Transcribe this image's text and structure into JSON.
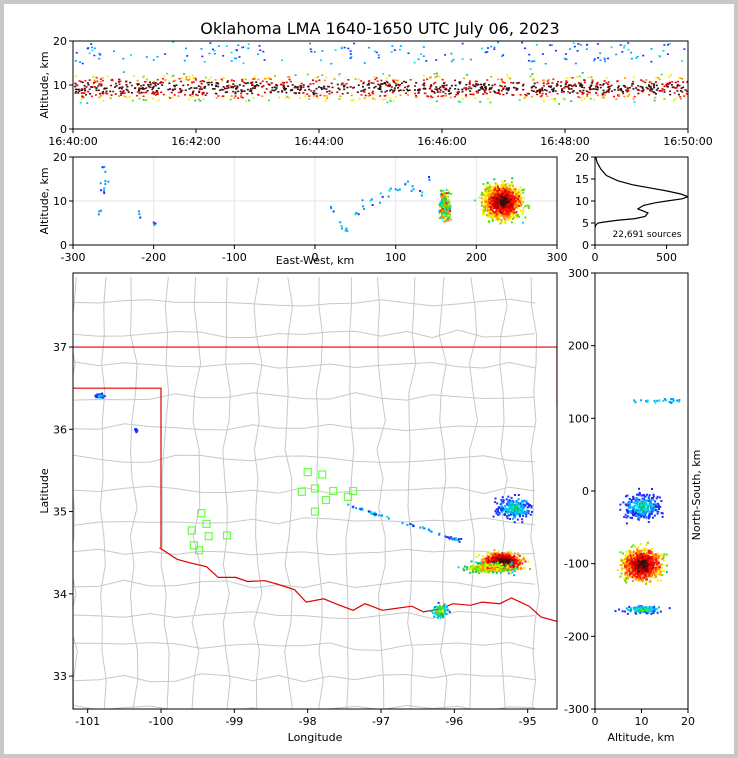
{
  "title": "Oklahoma LMA 1640-1650 UTC July 06, 2023",
  "colors": {
    "border_state": "#e00000",
    "county": "#c8c8c8",
    "station": "#66ff44",
    "frame": "#000000"
  },
  "chart_data": [
    {
      "id": "time-height",
      "type": "heatmap",
      "xticks": [
        "16:40:00",
        "16:42:00",
        "16:44:00",
        "16:46:00",
        "16:48:00",
        "16:50:00"
      ],
      "yticks": [
        "0",
        "10",
        "20"
      ],
      "ylabel": "Altitude, km",
      "xlabel": "",
      "xlim": [
        "16:40:00",
        "16:50:00"
      ],
      "ylim": [
        0,
        20
      ]
    },
    {
      "id": "ew-altitude",
      "type": "heatmap",
      "xticks": [
        "-300",
        "-200",
        "-100",
        "0",
        "100",
        "200",
        "300"
      ],
      "yticks": [
        "0",
        "10",
        "20"
      ],
      "xlabel": "East-West, km",
      "ylabel": "Altitude, km",
      "xlim": [
        -300,
        300
      ],
      "ylim": [
        0,
        20
      ],
      "grid": true
    },
    {
      "id": "altitude-histogram",
      "type": "line",
      "xticks": [
        "0",
        "500"
      ],
      "yticks": [
        "0",
        "5",
        "10",
        "15",
        "20"
      ],
      "annotation": "22,691 sources",
      "xlim": [
        0,
        650
      ],
      "ylim": [
        0,
        20
      ],
      "series": [
        {
          "x": [
            0,
            5,
            20,
            60,
            150,
            280,
            350,
            370,
            300,
            340,
            420,
            520,
            610,
            650,
            600,
            500,
            380,
            260,
            160,
            80,
            40,
            15,
            5
          ],
          "y": [
            4,
            4.5,
            5,
            5.2,
            5.6,
            6,
            6.5,
            7.3,
            8.2,
            9,
            9.6,
            10.1,
            10.5,
            11,
            11.6,
            12.3,
            13,
            13.7,
            14.6,
            15.8,
            17.3,
            18.8,
            20
          ]
        }
      ]
    },
    {
      "id": "plan-view",
      "type": "scatter",
      "xticks": [
        "-101",
        "-100",
        "-99",
        "-98",
        "-97",
        "-96",
        "-95"
      ],
      "yticks": [
        "33",
        "34",
        "35",
        "36",
        "37"
      ],
      "xlabel": "Longitude",
      "ylabel": "Latitude",
      "xlim": [
        -101.2,
        -94.6
      ],
      "ylim": [
        32.6,
        37.9
      ],
      "stations": [
        [
          -98.0,
          35.48
        ],
        [
          -97.8,
          35.45
        ],
        [
          -97.9,
          35.28
        ],
        [
          -98.08,
          35.24
        ],
        [
          -97.65,
          35.25
        ],
        [
          -97.75,
          35.14
        ],
        [
          -97.45,
          35.18
        ],
        [
          -97.38,
          35.25
        ],
        [
          -97.9,
          35.0
        ],
        [
          -99.45,
          34.98
        ],
        [
          -99.38,
          34.85
        ],
        [
          -99.58,
          34.77
        ],
        [
          -99.1,
          34.71
        ],
        [
          -99.35,
          34.7
        ],
        [
          -99.55,
          34.59
        ],
        [
          -99.48,
          34.53
        ]
      ]
    },
    {
      "id": "ns-altitude",
      "type": "heatmap",
      "xticks": [
        "0",
        "10",
        "20"
      ],
      "yticks": [
        "-300",
        "-200",
        "-100",
        "0",
        "100",
        "200",
        "300"
      ],
      "xlabel": "Altitude, km",
      "ylabel": "North-South, km",
      "xlim": [
        0,
        20
      ],
      "ylim": [
        -300,
        300
      ]
    }
  ]
}
